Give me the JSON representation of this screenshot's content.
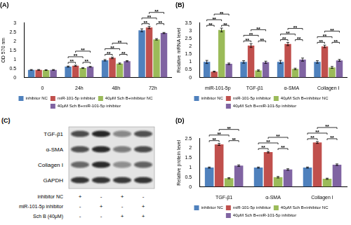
{
  "chart_data": [
    {
      "type": "bar",
      "title": "(A)",
      "y_label": "OD 570 nm",
      "categories": [
        "0",
        "24h",
        "48h",
        "72h"
      ],
      "series": [
        {
          "name": "inhibitor NC",
          "color": "#4f81bd",
          "values": [
            0.42,
            0.6,
            0.95,
            2.6
          ],
          "errors": [
            0.02,
            0.03,
            0.04,
            0.08
          ]
        },
        {
          "name": "miR-101-5p inhibitor",
          "color": "#c0504d",
          "values": [
            0.42,
            0.65,
            1.08,
            2.75
          ],
          "errors": [
            0.02,
            0.03,
            0.04,
            0.06
          ]
        },
        {
          "name": "40μM Sch B+inhibitor NC",
          "color": "#9bbb59",
          "values": [
            0.41,
            0.52,
            0.77,
            2.1
          ],
          "errors": [
            0.02,
            0.02,
            0.03,
            0.04
          ]
        },
        {
          "name": "40μM Sch B+miR-101-5p inhibitor",
          "color": "#8064a2",
          "values": [
            0.42,
            0.59,
            0.9,
            2.45
          ],
          "errors": [
            0.02,
            0.02,
            0.03,
            0.03
          ]
        }
      ],
      "ylim": [
        0,
        3
      ],
      "yticks": [
        0,
        0.5,
        1,
        1.5,
        2,
        2.5,
        3
      ],
      "grid": false,
      "legend": "bottom",
      "annotations": [
        {
          "category": "24h",
          "between": [
            "inhibitor NC",
            "miR-101-5p inhibitor"
          ],
          "text": "**"
        },
        {
          "category": "24h",
          "between": [
            "40μM Sch B+inhibitor NC",
            "40μM Sch B+miR-101-5p inhibitor"
          ],
          "text": "**"
        },
        {
          "category": "24h",
          "between": [
            "inhibitor NC",
            "40μM Sch B+inhibitor NC"
          ],
          "text": "**"
        },
        {
          "category": "24h",
          "between": [
            "miR-101-5p inhibitor",
            "40μM Sch B+miR-101-5p inhibitor"
          ],
          "text": "**"
        },
        {
          "category": "48h",
          "between": [
            "inhibitor NC",
            "miR-101-5p inhibitor"
          ],
          "text": "**"
        },
        {
          "category": "48h",
          "between": [
            "40μM Sch B+inhibitor NC",
            "40μM Sch B+miR-101-5p inhibitor"
          ],
          "text": "**"
        },
        {
          "category": "48h",
          "between": [
            "inhibitor NC",
            "40μM Sch B+inhibitor NC"
          ],
          "text": "**"
        },
        {
          "category": "48h",
          "between": [
            "miR-101-5p inhibitor",
            "40μM Sch B+miR-101-5p inhibitor"
          ],
          "text": "**"
        },
        {
          "category": "72h",
          "between": [
            "inhibitor NC",
            "miR-101-5p inhibitor"
          ],
          "text": "**"
        },
        {
          "category": "72h",
          "between": [
            "40μM Sch B+inhibitor NC",
            "40μM Sch B+miR-101-5p inhibitor"
          ],
          "text": "**"
        },
        {
          "category": "72h",
          "between": [
            "inhibitor NC",
            "40μM Sch B+inhibitor NC"
          ],
          "text": "**"
        },
        {
          "category": "72h",
          "between": [
            "miR-101-5p inhibitor",
            "40μM Sch B+miR-101-5p inhibitor"
          ],
          "text": "**"
        }
      ]
    },
    {
      "type": "bar",
      "title": "(B)",
      "y_label": "Relative mRNA level",
      "categories": [
        "miR-101-5p",
        "TGF-β1",
        "α-SMA",
        "Collagen I"
      ],
      "series": [
        {
          "name": "inhibitor NC",
          "color": "#4f81bd",
          "values": [
            1.0,
            1.0,
            1.0,
            1.0
          ],
          "errors": [
            0.1,
            0.08,
            0.1,
            0.08
          ]
        },
        {
          "name": "miR-101-5p inhibitor",
          "color": "#c0504d",
          "values": [
            0.38,
            2.05,
            2.15,
            2.0
          ],
          "errors": [
            0.03,
            0.12,
            0.1,
            0.08
          ]
        },
        {
          "name": "40μM Sch B+inhibitor NC",
          "color": "#9bbb59",
          "values": [
            3.05,
            0.45,
            0.55,
            0.65
          ],
          "errors": [
            0.12,
            0.04,
            0.05,
            0.06
          ]
        },
        {
          "name": "40μM Sch B+miR-101-5p inhibitor",
          "color": "#8064a2",
          "values": [
            0.88,
            0.98,
            1.15,
            1.1
          ],
          "errors": [
            0.05,
            0.07,
            0.1,
            0.06
          ]
        }
      ],
      "ylim": [
        0,
        3.5
      ],
      "yticks": [
        0,
        0.5,
        1,
        1.5,
        2,
        2.5,
        3,
        3.5
      ],
      "grid": false,
      "legend": "bottom",
      "annotations": [
        {
          "category": "miR-101-5p",
          "between": [
            "inhibitor NC",
            "miR-101-5p inhibitor"
          ],
          "text": "**"
        },
        {
          "category": "miR-101-5p",
          "between": [
            "40μM Sch B+inhibitor NC",
            "40μM Sch B+miR-101-5p inhibitor"
          ],
          "text": "**"
        },
        {
          "category": "miR-101-5p",
          "between": [
            "inhibitor NC",
            "40μM Sch B+inhibitor NC"
          ],
          "text": "**"
        },
        {
          "category": "miR-101-5p",
          "between": [
            "miR-101-5p inhibitor",
            "40μM Sch B+miR-101-5p inhibitor"
          ],
          "text": "**"
        },
        {
          "category": "TGF-β1",
          "between": [
            "inhibitor NC",
            "miR-101-5p inhibitor"
          ],
          "text": "**"
        },
        {
          "category": "TGF-β1",
          "between": [
            "40μM Sch B+inhibitor NC",
            "40μM Sch B+miR-101-5p inhibitor"
          ],
          "text": "**"
        },
        {
          "category": "TGF-β1",
          "between": [
            "inhibitor NC",
            "40μM Sch B+inhibitor NC"
          ],
          "text": "**"
        },
        {
          "category": "TGF-β1",
          "between": [
            "miR-101-5p inhibitor",
            "40μM Sch B+miR-101-5p inhibitor"
          ],
          "text": "**"
        },
        {
          "category": "α-SMA",
          "between": [
            "inhibitor NC",
            "miR-101-5p inhibitor"
          ],
          "text": "**"
        },
        {
          "category": "α-SMA",
          "between": [
            "40μM Sch B+inhibitor NC",
            "40μM Sch B+miR-101-5p inhibitor"
          ],
          "text": "**"
        },
        {
          "category": "α-SMA",
          "between": [
            "inhibitor NC",
            "40μM Sch B+inhibitor NC"
          ],
          "text": "**"
        },
        {
          "category": "α-SMA",
          "between": [
            "miR-101-5p inhibitor",
            "40μM Sch B+miR-101-5p inhibitor"
          ],
          "text": "**"
        },
        {
          "category": "Collagen I",
          "between": [
            "inhibitor NC",
            "miR-101-5p inhibitor"
          ],
          "text": "**"
        },
        {
          "category": "Collagen I",
          "between": [
            "40μM Sch B+inhibitor NC",
            "40μM Sch B+miR-101-5p inhibitor"
          ],
          "text": "**"
        },
        {
          "category": "Collagen I",
          "between": [
            "inhibitor NC",
            "40μM Sch B+inhibitor NC"
          ],
          "text": "**"
        },
        {
          "category": "Collagen I",
          "between": [
            "miR-101-5p inhibitor",
            "40μM Sch B+miR-101-5p inhibitor"
          ],
          "text": "**"
        }
      ]
    },
    {
      "type": "bar",
      "title": "(D)",
      "y_label": "Relative protein level",
      "categories": [
        "TGF-β1",
        "α-SMA",
        "Collagen I"
      ],
      "series": [
        {
          "name": "inhibitor NC",
          "color": "#4f81bd",
          "values": [
            1.0,
            1.0,
            1.0
          ],
          "errors": [
            0.03,
            0.03,
            0.03
          ]
        },
        {
          "name": "miR-101-5p inhibitor",
          "color": "#c0504d",
          "values": [
            2.2,
            1.8,
            2.3
          ],
          "errors": [
            0.05,
            0.04,
            0.05
          ]
        },
        {
          "name": "40μM Sch B+inhibitor NC",
          "color": "#9bbb59",
          "values": [
            0.45,
            0.5,
            0.42
          ],
          "errors": [
            0.03,
            0.04,
            0.03
          ]
        },
        {
          "name": "40μM Sch B+miR-101-5p inhibitor",
          "color": "#8064a2",
          "values": [
            1.1,
            0.9,
            1.15
          ],
          "errors": [
            0.04,
            0.04,
            0.04
          ]
        }
      ],
      "ylim": [
        0,
        2.5
      ],
      "yticks": [
        0,
        0.5,
        1,
        1.5,
        2,
        2.5
      ],
      "grid": false,
      "legend": "bottom",
      "annotations": [
        {
          "category": "TGF-β1",
          "between": [
            "inhibitor NC",
            "miR-101-5p inhibitor"
          ],
          "text": "**"
        },
        {
          "category": "TGF-β1",
          "between": [
            "40μM Sch B+inhibitor NC",
            "40μM Sch B+miR-101-5p inhibitor"
          ],
          "text": "**"
        },
        {
          "category": "TGF-β1",
          "between": [
            "inhibitor NC",
            "40μM Sch B+inhibitor NC"
          ],
          "text": "**"
        },
        {
          "category": "TGF-β1",
          "between": [
            "miR-101-5p inhibitor",
            "40μM Sch B+miR-101-5p inhibitor"
          ],
          "text": "**"
        },
        {
          "category": "α-SMA",
          "between": [
            "inhibitor NC",
            "miR-101-5p inhibitor"
          ],
          "text": "**"
        },
        {
          "category": "α-SMA",
          "between": [
            "40μM Sch B+inhibitor NC",
            "40μM Sch B+miR-101-5p inhibitor"
          ],
          "text": "**"
        },
        {
          "category": "α-SMA",
          "between": [
            "inhibitor NC",
            "40μM Sch B+inhibitor NC"
          ],
          "text": "**"
        },
        {
          "category": "α-SMA",
          "between": [
            "miR-101-5p inhibitor",
            "40μM Sch B+miR-101-5p inhibitor"
          ],
          "text": "**"
        },
        {
          "category": "Collagen I",
          "between": [
            "inhibitor NC",
            "miR-101-5p inhibitor"
          ],
          "text": "**"
        },
        {
          "category": "Collagen I",
          "between": [
            "40μM Sch B+inhibitor NC",
            "40μM Sch B+miR-101-5p inhibitor"
          ],
          "text": "**"
        },
        {
          "category": "Collagen I",
          "between": [
            "inhibitor NC",
            "40μM Sch B+inhibitor NC"
          ],
          "text": "**"
        },
        {
          "category": "Collagen I",
          "between": [
            "miR-101-5p inhibitor",
            "40μM Sch B+miR-101-5p inhibitor"
          ],
          "text": "**"
        }
      ]
    }
  ],
  "blot": {
    "title": "(C)",
    "proteins": [
      "TGF-β1",
      "α-SMA",
      "Collagen I",
      "GAPDH"
    ],
    "conditions": [
      {
        "label": "inhibitor NC",
        "signs": [
          "+",
          "-",
          "+",
          "-"
        ]
      },
      {
        "label": "miR-101-5p inhibitor",
        "signs": [
          "-",
          "+",
          "-",
          "+"
        ]
      },
      {
        "label": "Sch B (40μM)",
        "signs": [
          "-",
          "-",
          "+",
          "+"
        ]
      }
    ]
  }
}
